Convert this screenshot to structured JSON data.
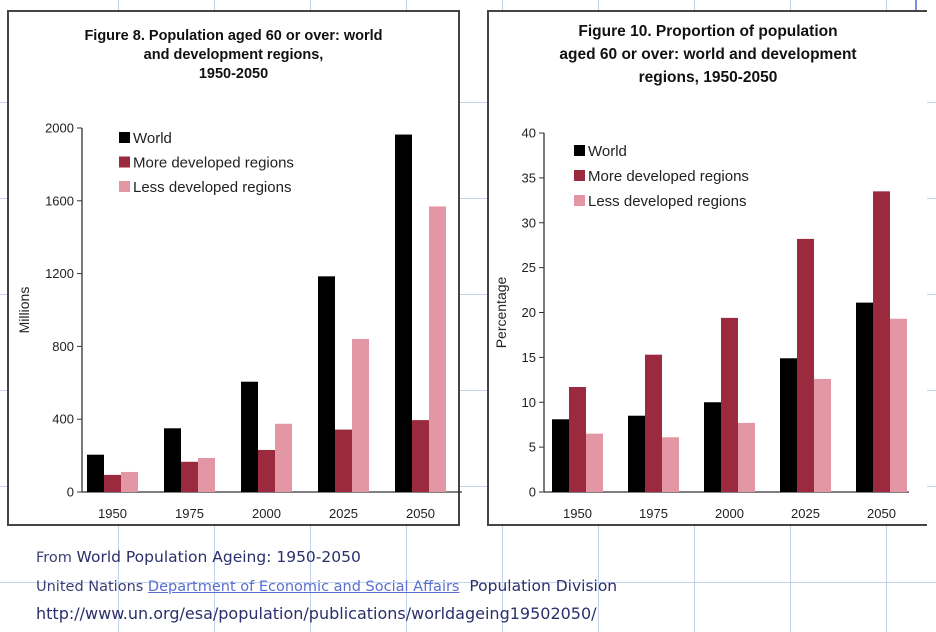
{
  "chart_data": [
    {
      "type": "bar",
      "title": "Figure 8.  Population aged 60 or over: world and development regions, 1950-2050",
      "title_lines": [
        "Figure 8.  Population aged 60 or over: world",
        "and development regions,",
        "1950-2050"
      ],
      "xlabel": "",
      "ylabel": "Millions",
      "ylim": [
        0,
        2000
      ],
      "yticks": [
        0,
        400,
        800,
        1200,
        1600,
        2000
      ],
      "categories": [
        "1950",
        "1975",
        "2000",
        "2025",
        "2050"
      ],
      "series": [
        {
          "name": "World",
          "color": "#000000",
          "values": [
            205,
            350,
            606,
            1185,
            1964
          ]
        },
        {
          "name": "More developed regions",
          "color": "#9b2a3e",
          "values": [
            94,
            166,
            231,
            343,
            395
          ]
        },
        {
          "name": "Less developed regions",
          "color": "#e397a4",
          "values": [
            110,
            187,
            375,
            841,
            1569
          ]
        }
      ],
      "legend": "top-left",
      "grid": false
    },
    {
      "type": "bar",
      "title": "Figure 10.  Proportion of population aged 60 or over: world and development regions, 1950-2050",
      "title_lines": [
        "Figure 10.  Proportion of population",
        "aged 60 or over: world and development",
        "regions, 1950-2050"
      ],
      "xlabel": "",
      "ylabel": "Percentage",
      "ylim": [
        0,
        40
      ],
      "yticks": [
        0,
        5,
        10,
        15,
        20,
        25,
        30,
        35,
        40
      ],
      "categories": [
        "1950",
        "1975",
        "2000",
        "2025",
        "2050"
      ],
      "series": [
        {
          "name": "World",
          "color": "#000000",
          "values": [
            8.1,
            8.5,
            10.0,
            14.9,
            21.1
          ]
        },
        {
          "name": "More developed regions",
          "color": "#9b2a3e",
          "values": [
            11.7,
            15.3,
            19.4,
            28.2,
            33.5
          ]
        },
        {
          "name": "Less developed regions",
          "color": "#e397a4",
          "values": [
            6.5,
            6.1,
            7.7,
            12.6,
            19.3
          ]
        }
      ],
      "legend": "top-left",
      "grid": false
    }
  ],
  "footer": {
    "line1_prefix": "From ",
    "line1_title": "World Population Ageing:  1950-2050",
    "line2_prefix": "United Nations ",
    "line2_link": "Department of Economic and Social Affairs",
    "line2_suffix": "  Population Division",
    "line3_url": "http://www.un.org/esa/population/publications/worldageing19502050/"
  }
}
